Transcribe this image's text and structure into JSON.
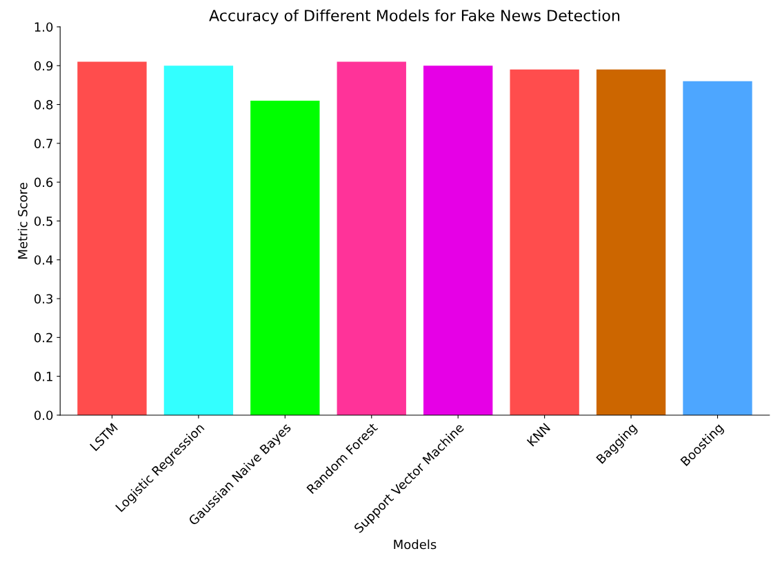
{
  "chart_data": {
    "type": "bar",
    "title": "Accuracy of Different Models for Fake News Detection",
    "xlabel": "Models",
    "ylabel": "Metric Score",
    "categories": [
      "LSTM",
      "Logistic Regression",
      "Gaussian Naive Bayes",
      "Random Forest",
      "Support Vector Machine",
      "KNN",
      "Bagging",
      "Boosting"
    ],
    "values": [
      0.91,
      0.9,
      0.81,
      0.91,
      0.9,
      0.89,
      0.89,
      0.86
    ],
    "colors": [
      "#ff4d4d",
      "#33ffff",
      "#00ff00",
      "#ff3399",
      "#e600e6",
      "#ff4d4d",
      "#cc6600",
      "#4da6ff"
    ],
    "ylim": [
      0,
      1
    ],
    "yticks": [
      {
        "value": 0,
        "label": "0.0"
      },
      {
        "value": 0.1,
        "label": "0.1"
      },
      {
        "value": 0.2,
        "label": "0.2"
      },
      {
        "value": 0.3,
        "label": "0.3"
      },
      {
        "value": 0.4,
        "label": "0.4"
      },
      {
        "value": 0.5,
        "label": "0.5"
      },
      {
        "value": 0.6,
        "label": "0.6"
      },
      {
        "value": 0.7,
        "label": "0.7"
      },
      {
        "value": 0.8,
        "label": "0.8"
      },
      {
        "value": 0.9,
        "label": "0.9"
      },
      {
        "value": 1,
        "label": "1.0"
      }
    ],
    "grid": false,
    "legend": false
  }
}
